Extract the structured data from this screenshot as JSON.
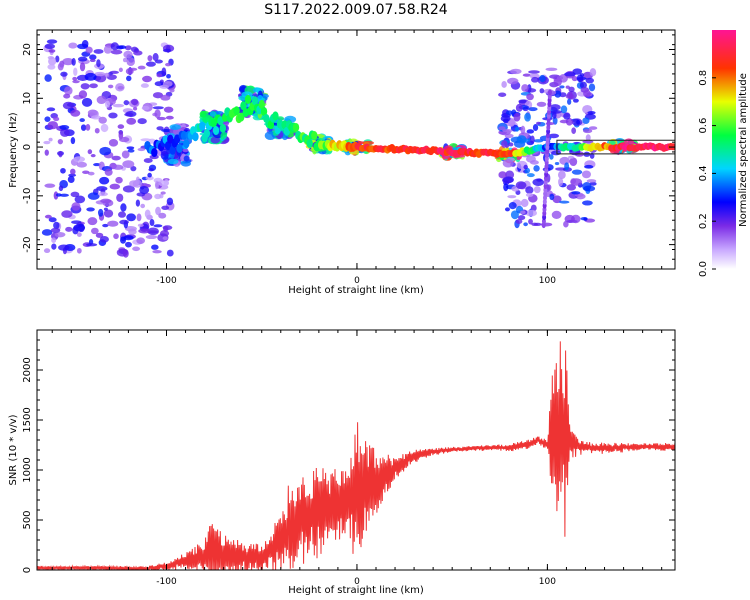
{
  "title": "S117.2022.009.07.58.R24",
  "chart_data": [
    {
      "type": "heatmap",
      "xlabel": "Height of straight line (km)",
      "ylabel": "Frequency (Hz)",
      "xlim": [
        -168,
        167
      ],
      "ylim": [
        -25,
        24
      ],
      "xticks": [
        -100,
        0,
        100
      ],
      "xtick_labels": [
        "-100",
        "0",
        "100"
      ],
      "yticks": [
        20,
        10,
        0,
        -10,
        -20
      ],
      "ytick_labels": [
        "20",
        "10",
        "0",
        "-10",
        "-20"
      ],
      "colorbar": {
        "label": "Normalized spectral amplitude",
        "range": [
          0,
          1
        ],
        "ticks": [
          0.0,
          0.2,
          0.4,
          0.6,
          0.8
        ],
        "tick_labels": [
          "0.0",
          "0.2",
          "0.4",
          "0.6",
          "0.8"
        ],
        "colors": [
          "#ffffff",
          "#8a2be2",
          "#0000ff",
          "#00ffff",
          "#00ff00",
          "#ffff00",
          "#ff0000",
          "#ff1493"
        ]
      },
      "features": [
        {
          "x": -130,
          "y": 0,
          "spread": 22,
          "amplitude": 0.25
        },
        {
          "x": -95,
          "y": 0.5,
          "spread": 4,
          "amplitude": 0.35
        },
        {
          "x": -75,
          "y": 4,
          "spread": 3,
          "amplitude": 0.5
        },
        {
          "x": -55,
          "y": 9,
          "spread": 3,
          "amplitude": 0.55
        },
        {
          "x": -40,
          "y": 4,
          "spread": 2,
          "amplitude": 0.5
        },
        {
          "x": -20,
          "y": 0.5,
          "spread": 1.5,
          "amplitude": 0.6
        },
        {
          "x": 0,
          "y": 0,
          "spread": 1,
          "amplitude": 0.85
        },
        {
          "x": 50,
          "y": -1,
          "spread": 1,
          "amplitude": 0.9
        },
        {
          "x": 80,
          "y": -1.5,
          "spread": 1,
          "amplitude": 0.85
        },
        {
          "x": 100,
          "y": 0,
          "spread": 16,
          "amplitude": 0.3
        },
        {
          "x": 140,
          "y": 0,
          "spread": 1,
          "amplitude": 0.95
        }
      ]
    },
    {
      "type": "line",
      "xlabel": "Height of straight line (km)",
      "ylabel": "SNR (10 * v/v)",
      "xlim": [
        -168,
        167
      ],
      "ylim": [
        0,
        2400
      ],
      "xticks": [
        -100,
        0,
        100
      ],
      "xtick_labels": [
        "-100",
        "0",
        "100"
      ],
      "yticks": [
        0,
        500,
        1000,
        1500,
        2000
      ],
      "ytick_labels": [
        "0",
        "500",
        "1000",
        "1500",
        "2000"
      ],
      "color": "#ee3333",
      "series": [
        {
          "x": [
            -168,
            -150,
            -130,
            -110,
            -100,
            -90,
            -80,
            -70,
            -60,
            -50,
            -40,
            -30,
            -20,
            -10,
            0,
            10,
            20,
            30,
            40,
            50,
            60,
            70,
            80,
            90,
            95,
            100,
            105,
            110,
            120,
            130,
            140,
            150,
            160,
            167
          ],
          "y": [
            15,
            20,
            15,
            10,
            30,
            80,
            120,
            90,
            100,
            100,
            250,
            450,
            500,
            600,
            700,
            800,
            1000,
            1130,
            1180,
            1200,
            1210,
            1220,
            1220,
            1250,
            1300,
            1240,
            1250,
            1240,
            1220,
            1210,
            1220,
            1230,
            1225,
            1230
          ]
        }
      ],
      "envelope": {
        "x": [
          -168,
          -130,
          -110,
          -100,
          -90,
          -80,
          -75,
          -70,
          -60,
          -50,
          -45,
          -35,
          -30,
          -25,
          -20,
          -15,
          -10,
          -5,
          0,
          10,
          20,
          30,
          40,
          60,
          80,
          90,
          95,
          100,
          103,
          106,
          108,
          110,
          112,
          120,
          140,
          167
        ],
        "y": [
          40,
          40,
          40,
          80,
          180,
          300,
          580,
          350,
          300,
          250,
          400,
          900,
          970,
          1000,
          1050,
          1030,
          1000,
          1050,
          1530,
          1200,
          1150,
          1200,
          1220,
          1240,
          1260,
          1310,
          1340,
          1300,
          2100,
          2300,
          2400,
          2300,
          1400,
          1280,
          1270,
          1270
        ]
      }
    }
  ]
}
